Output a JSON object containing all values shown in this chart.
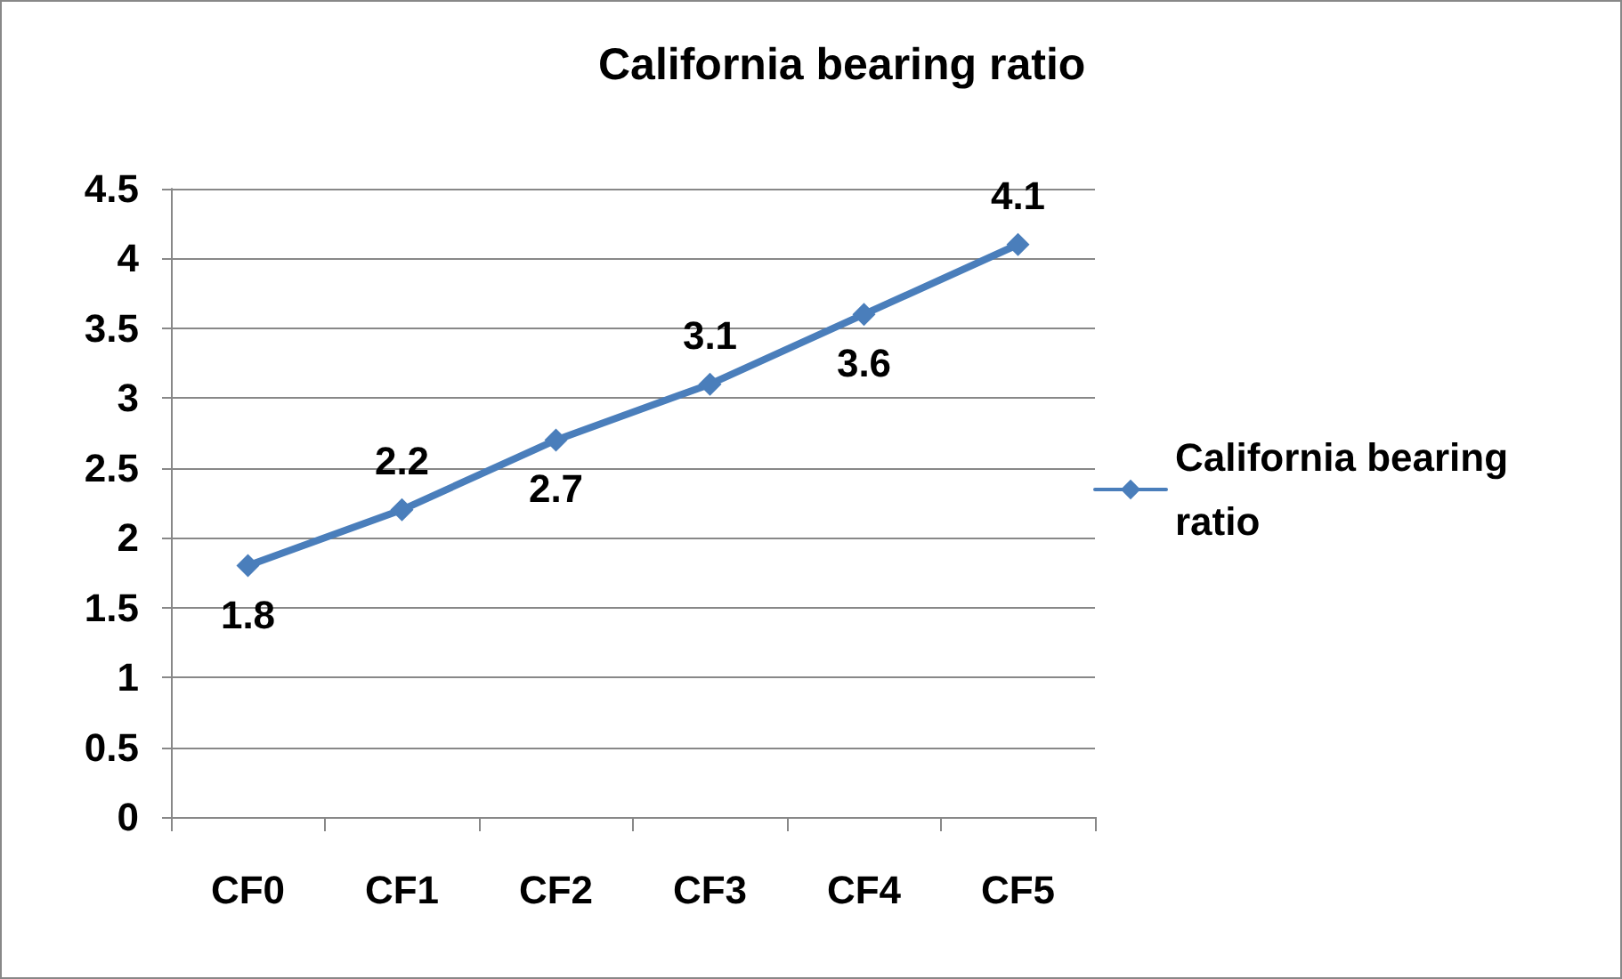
{
  "chart_data": {
    "type": "line",
    "title": "California bearing ratio",
    "categories": [
      "CF0",
      "CF1",
      "CF2",
      "CF3",
      "CF4",
      "CF5"
    ],
    "series": [
      {
        "name": "California bearing ratio",
        "color": "#4a7ebb",
        "values": [
          1.8,
          2.2,
          2.7,
          3.1,
          3.6,
          4.1
        ]
      }
    ],
    "ylim": [
      0,
      4.5
    ],
    "yticks": [
      0,
      0.5,
      1,
      1.5,
      2,
      2.5,
      3,
      3.5,
      4,
      4.5
    ],
    "grid": "y",
    "legend": "right",
    "marker": "diamond",
    "line_style": "solid",
    "data_labels": true
  }
}
